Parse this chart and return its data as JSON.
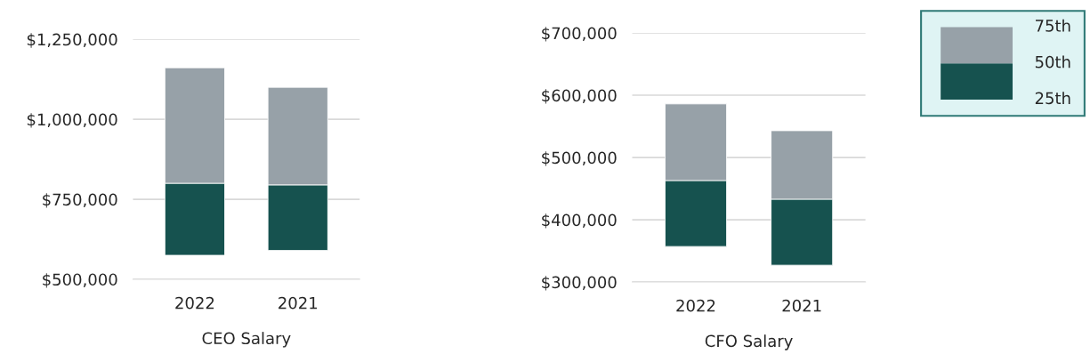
{
  "chart_data": [
    {
      "type": "bar",
      "xlabel": "CEO Salary",
      "categories": [
        "2022",
        "2021"
      ],
      "series": [
        {
          "color": "#16524f",
          "base": [
            575000,
            590000
          ],
          "values": [
            225000,
            205000
          ]
        },
        {
          "color": "#97a1a8",
          "base": [
            800000,
            795000
          ],
          "values": [
            361000,
            305000
          ]
        }
      ],
      "ylim": [
        500000,
        1250000
      ],
      "yticks": [
        {
          "value": 500000,
          "label": "$500,000"
        },
        {
          "value": 750000,
          "label": "$750,000"
        },
        {
          "value": 1000000,
          "label": "$1,000,000"
        },
        {
          "value": 1250000,
          "label": "$1,250,000"
        }
      ],
      "grid": "y"
    },
    {
      "type": "bar",
      "xlabel": "CFO Salary",
      "categories": [
        "2022",
        "2021"
      ],
      "series": [
        {
          "color": "#16524f",
          "base": [
            357000,
            327000
          ],
          "values": [
            106000,
            106000
          ]
        },
        {
          "color": "#97a1a8",
          "base": [
            463000,
            433000
          ],
          "values": [
            123000,
            110000
          ]
        }
      ],
      "ylim": [
        300000,
        700000
      ],
      "yticks": [
        {
          "value": 300000,
          "label": "$300,000"
        },
        {
          "value": 400000,
          "label": "$400,000"
        },
        {
          "value": 500000,
          "label": "$500,000"
        },
        {
          "value": 600000,
          "label": "$600,000"
        },
        {
          "value": 700000,
          "label": "$700,000"
        }
      ],
      "grid": "y",
      "annotations": [
        "75th",
        "50th",
        "25th"
      ]
    }
  ]
}
